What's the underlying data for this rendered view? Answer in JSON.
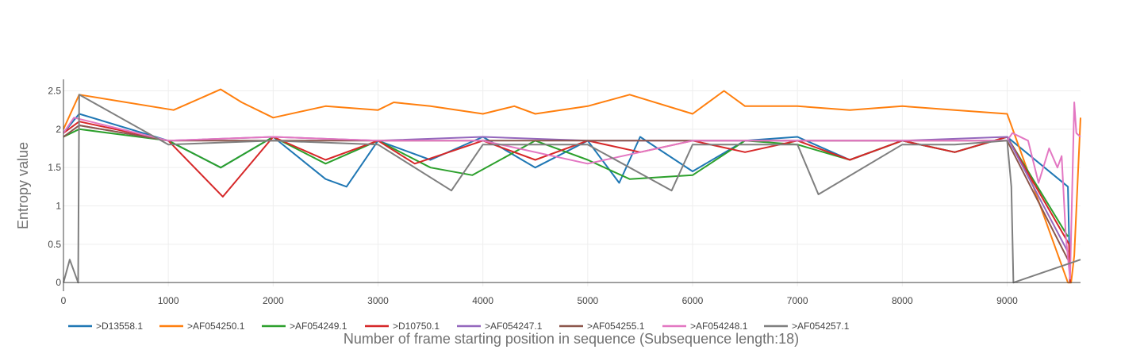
{
  "chart_data": {
    "type": "line",
    "title": "",
    "xlabel": "Number of frame starting position in sequence (Subsequence length:18)",
    "ylabel": "Entropy value",
    "xlim": [
      0,
      9700
    ],
    "ylim": [
      -0.05,
      2.65
    ],
    "x_ticks": [
      0,
      1000,
      2000,
      3000,
      4000,
      5000,
      6000,
      7000,
      8000,
      9000
    ],
    "y_ticks": [
      0,
      0.5,
      1,
      1.5,
      2,
      2.5
    ],
    "x_tick_labels": [
      "0",
      "1000",
      "2000",
      "3000",
      "4000",
      "5000",
      "6000",
      "7000",
      "8000",
      "9000"
    ],
    "y_tick_labels": [
      "0",
      "0.5",
      "1",
      "1.5",
      "2",
      "2.5"
    ],
    "grid": true,
    "legend_position": "bottom-left, horizontal",
    "series": [
      {
        "name": ">D13558.1",
        "color": "#1f77b4",
        "x": [
          0,
          150,
          1000,
          1500,
          2000,
          2500,
          2700,
          3000,
          3500,
          4000,
          4500,
          5000,
          5300,
          5500,
          6000,
          6500,
          7000,
          7500,
          8000,
          8500,
          9000,
          9580,
          9600
        ],
        "y": [
          1.95,
          2.2,
          1.85,
          1.5,
          1.9,
          1.35,
          1.25,
          1.85,
          1.6,
          1.9,
          1.5,
          1.85,
          1.3,
          1.9,
          1.45,
          1.85,
          1.9,
          1.6,
          1.85,
          1.7,
          1.9,
          1.25,
          0
        ]
      },
      {
        "name": ">AF054250.1",
        "color": "#ff7f0e",
        "x": [
          0,
          150,
          1050,
          1500,
          1700,
          2000,
          2500,
          3000,
          3150,
          3500,
          4000,
          4300,
          4500,
          5000,
          5400,
          6000,
          6300,
          6500,
          7000,
          7500,
          8000,
          8500,
          9000,
          9580,
          9610,
          9640,
          9700
        ],
        "y": [
          2.0,
          2.45,
          2.25,
          2.52,
          2.35,
          2.15,
          2.3,
          2.25,
          2.35,
          2.3,
          2.2,
          2.3,
          2.2,
          2.3,
          2.45,
          2.2,
          2.5,
          2.3,
          2.3,
          2.25,
          2.3,
          2.25,
          2.2,
          0,
          0,
          0.35,
          2.15
        ]
      },
      {
        "name": ">AF054249.1",
        "color": "#2ca02c",
        "x": [
          0,
          150,
          1000,
          1500,
          2000,
          2500,
          3000,
          3500,
          3900,
          4500,
          5000,
          5400,
          6000,
          6500,
          7000,
          7500,
          8000,
          8500,
          9000,
          9580
        ],
        "y": [
          1.9,
          2.0,
          1.85,
          1.5,
          1.9,
          1.55,
          1.85,
          1.5,
          1.4,
          1.85,
          1.6,
          1.35,
          1.4,
          1.85,
          1.8,
          1.6,
          1.85,
          1.7,
          1.9,
          0.6
        ]
      },
      {
        "name": ">D10750.1",
        "color": "#d62728",
        "x": [
          0,
          150,
          1000,
          1520,
          2000,
          2500,
          3000,
          3350,
          4000,
          4500,
          5000,
          5500,
          6000,
          6500,
          7000,
          7500,
          8000,
          8500,
          9000,
          9590,
          9600
        ],
        "y": [
          1.95,
          2.1,
          1.85,
          1.12,
          1.9,
          1.6,
          1.85,
          1.55,
          1.85,
          1.6,
          1.85,
          1.7,
          1.85,
          1.7,
          1.85,
          1.6,
          1.85,
          1.7,
          1.9,
          0.5,
          0
        ]
      },
      {
        "name": ">AF054247.1",
        "color": "#9467bd",
        "x": [
          0,
          150,
          1000,
          2000,
          3000,
          4000,
          5000,
          6000,
          7000,
          8000,
          9000,
          9580
        ],
        "y": [
          1.9,
          2.05,
          1.85,
          1.9,
          1.85,
          1.9,
          1.85,
          1.85,
          1.85,
          1.85,
          1.9,
          0.4
        ]
      },
      {
        "name": ">AF054255.1",
        "color": "#8c564b",
        "x": [
          0,
          150,
          1000,
          2000,
          3000,
          4000,
          5000,
          6000,
          7000,
          8000,
          9000,
          9580
        ],
        "y": [
          1.9,
          2.05,
          1.85,
          1.85,
          1.85,
          1.85,
          1.85,
          1.85,
          1.85,
          1.85,
          1.85,
          0.3
        ]
      },
      {
        "name": ">AF054248.1",
        "color": "#e377c2",
        "x": [
          0,
          100,
          1000,
          2000,
          3000,
          4000,
          5000,
          6000,
          7000,
          8000,
          9000,
          9050,
          9200,
          9300,
          9400,
          9480,
          9520,
          9560,
          9600,
          9640,
          9660,
          9700
        ],
        "y": [
          1.95,
          2.15,
          1.85,
          1.9,
          1.85,
          1.85,
          1.55,
          1.85,
          1.85,
          1.85,
          1.85,
          1.95,
          1.85,
          1.3,
          1.75,
          1.5,
          1.65,
          0.6,
          0.05,
          2.35,
          1.95,
          1.9
        ]
      },
      {
        "name": ">AF054257.1",
        "color": "#7f7f7f",
        "x": [
          0,
          60,
          140,
          150,
          1000,
          2000,
          3000,
          3700,
          4000,
          5000,
          5800,
          6000,
          7000,
          7200,
          8000,
          8500,
          9000,
          9040,
          9060,
          9700
        ],
        "y": [
          0,
          0.3,
          0,
          2.45,
          1.8,
          1.85,
          1.8,
          1.2,
          1.8,
          1.8,
          1.2,
          1.8,
          1.8,
          1.15,
          1.8,
          1.8,
          1.85,
          1.25,
          0,
          0.3
        ]
      }
    ]
  }
}
